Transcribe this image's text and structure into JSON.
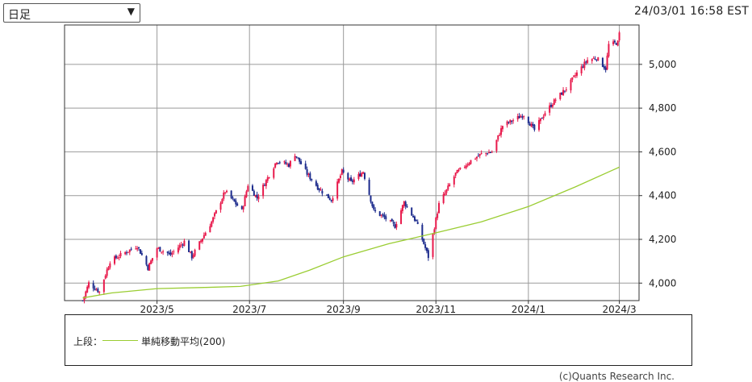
{
  "period_select": {
    "value": "日足"
  },
  "timestamp": "24/03/01 16:58 EST",
  "legend": {
    "prefix": "上段：",
    "items": [
      {
        "label": "単純移動平均(200)",
        "color": "#9acd32"
      }
    ]
  },
  "credit": "(c)Quants Research Inc.",
  "colors": {
    "up": "#e8194b",
    "down": "#1b2a8c",
    "ma": "#9acd32",
    "grid": "#9a9a9a",
    "frame": "#333333"
  },
  "chart_data": {
    "type": "candlestick",
    "x_ticks": [
      "2023/5",
      "2023/7",
      "2023/9",
      "2023/11",
      "2024/1",
      "2024/3"
    ],
    "y_ticks": [
      "4,000",
      "4,200",
      "4,400",
      "4,600",
      "4,800",
      "5,000"
    ],
    "y_tick_values": [
      4000,
      4200,
      4400,
      4600,
      4800,
      5000
    ],
    "ylim": [
      3920,
      5180
    ],
    "x_range": [
      "2023-03-01",
      "2024-03-14"
    ],
    "grid": true,
    "series": [
      {
        "name": "",
        "type": "candlestick",
        "close_anchors": [
          [
            "2023-03-13",
            3920
          ],
          [
            "2023-03-17",
            4000
          ],
          [
            "2023-03-24",
            3960
          ],
          [
            "2023-03-31",
            4100
          ],
          [
            "2023-04-10",
            4140
          ],
          [
            "2023-04-18",
            4170
          ],
          [
            "2023-04-25",
            4070
          ],
          [
            "2023-05-01",
            4160
          ],
          [
            "2023-05-10",
            4130
          ],
          [
            "2023-05-19",
            4190
          ],
          [
            "2023-05-24",
            4120
          ],
          [
            "2023-06-01",
            4220
          ],
          [
            "2023-06-06",
            4280
          ],
          [
            "2023-06-15",
            4420
          ],
          [
            "2023-06-26",
            4330
          ],
          [
            "2023-06-30",
            4450
          ],
          [
            "2023-07-06",
            4390
          ],
          [
            "2023-07-19",
            4560
          ],
          [
            "2023-07-27",
            4540
          ],
          [
            "2023-07-31",
            4590
          ],
          [
            "2023-08-08",
            4500
          ],
          [
            "2023-08-16",
            4430
          ],
          [
            "2023-08-24",
            4380
          ],
          [
            "2023-08-31",
            4510
          ],
          [
            "2023-09-06",
            4460
          ],
          [
            "2023-09-14",
            4510
          ],
          [
            "2023-09-21",
            4330
          ],
          [
            "2023-09-28",
            4300
          ],
          [
            "2023-10-05",
            4260
          ],
          [
            "2023-10-11",
            4370
          ],
          [
            "2023-10-19",
            4280
          ],
          [
            "2023-10-27",
            4120
          ],
          [
            "2023-11-03",
            4360
          ],
          [
            "2023-11-14",
            4500
          ],
          [
            "2023-11-24",
            4560
          ],
          [
            "2023-12-01",
            4590
          ],
          [
            "2023-12-08",
            4600
          ],
          [
            "2023-12-15",
            4720
          ],
          [
            "2023-12-29",
            4770
          ],
          [
            "2024-01-05",
            4700
          ],
          [
            "2024-01-12",
            4780
          ],
          [
            "2024-01-19",
            4840
          ],
          [
            "2024-01-26",
            4890
          ],
          [
            "2024-02-02",
            4960
          ],
          [
            "2024-02-09",
            5020
          ],
          [
            "2024-02-15",
            5030
          ],
          [
            "2024-02-21",
            4980
          ],
          [
            "2024-02-23",
            5090
          ],
          [
            "2024-02-29",
            5100
          ],
          [
            "2024-03-01",
            5140
          ]
        ]
      },
      {
        "name": "単純移動平均(200)",
        "type": "line",
        "points": [
          [
            "2023-03-13",
            3932
          ],
          [
            "2023-04-01",
            3955
          ],
          [
            "2023-05-01",
            3975
          ],
          [
            "2023-06-01",
            3980
          ],
          [
            "2023-06-25",
            3985
          ],
          [
            "2023-07-20",
            4010
          ],
          [
            "2023-08-10",
            4060
          ],
          [
            "2023-09-01",
            4120
          ],
          [
            "2023-10-01",
            4180
          ],
          [
            "2023-11-01",
            4230
          ],
          [
            "2023-12-01",
            4280
          ],
          [
            "2024-01-01",
            4350
          ],
          [
            "2024-02-01",
            4440
          ],
          [
            "2024-03-01",
            4530
          ]
        ]
      }
    ]
  }
}
